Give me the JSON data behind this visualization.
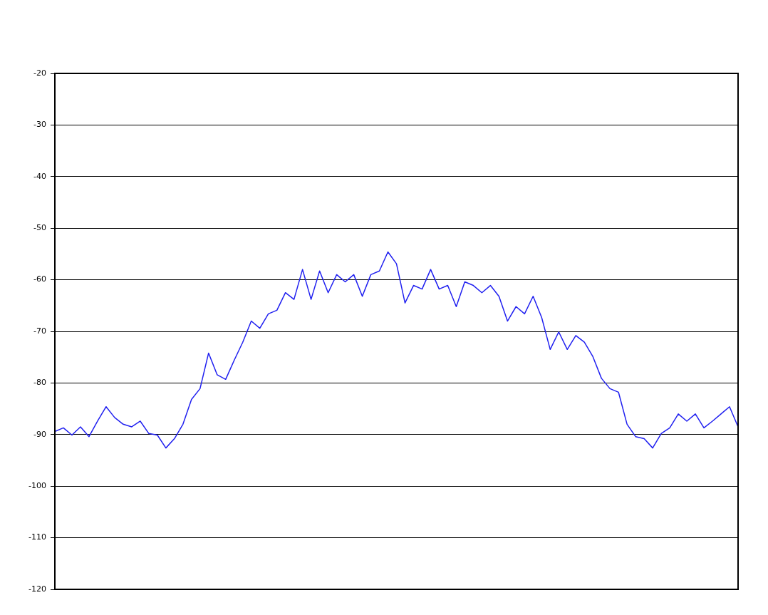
{
  "chart_data": {
    "type": "line",
    "grid": "y",
    "tick_labels": "y",
    "marker": "none",
    "line_style": "solid",
    "categories": [
      null,
      null,
      null,
      null,
      null,
      null,
      null,
      null,
      null,
      null,
      null,
      null,
      null,
      null,
      null,
      null,
      null,
      null,
      null,
      null,
      null,
      null,
      null,
      null,
      null,
      null,
      null,
      null,
      null,
      null,
      null,
      null,
      null,
      null,
      null,
      null,
      null,
      null,
      null,
      null,
      null,
      null,
      null,
      null,
      null,
      null,
      null,
      null,
      null,
      null,
      null,
      null,
      null,
      null,
      null,
      null,
      null,
      null,
      null,
      null,
      null,
      null,
      null,
      null,
      null,
      null,
      null,
      null,
      null,
      null,
      null,
      null,
      null,
      null,
      null,
      null,
      null,
      null,
      null,
      null,
      null
    ],
    "ylim": [
      -120,
      -20
    ],
    "yticks": [
      -120,
      -110,
      -100,
      -90,
      -80,
      -70,
      -60,
      -50,
      -40,
      -30,
      -20
    ],
    "series": [
      {
        "color": "#2020f0",
        "values": [
          -89.4,
          -88.7,
          -90.1,
          -88.5,
          -90.4,
          -87.4,
          -84.6,
          -86.7,
          -88.0,
          -88.5,
          -87.4,
          -89.8,
          -90.1,
          -92.6,
          -90.8,
          -88.0,
          -83.2,
          -81.1,
          -74.2,
          -78.4,
          -79.3,
          -75.6,
          -72.1,
          -68.0,
          -69.4,
          -66.6,
          -65.9,
          -62.5,
          -63.8,
          -58.0,
          -63.8,
          -58.3,
          -62.5,
          -59.0,
          -60.4,
          -59.0,
          -63.2,
          -59.0,
          -58.3,
          -54.6,
          -56.9,
          -64.5,
          -61.1,
          -61.8,
          -58.0,
          -61.8,
          -61.1,
          -65.2,
          -60.4,
          -61.1,
          -62.5,
          -61.1,
          -63.2,
          -68.0,
          -65.2,
          -66.6,
          -63.2,
          -67.3,
          -73.5,
          -70.1,
          -73.5,
          -70.8,
          -72.1,
          -74.9,
          -79.1,
          -81.1,
          -81.8,
          -88.0,
          -90.4,
          -90.8,
          -92.6,
          -89.8,
          -88.7,
          -86.0,
          -87.4,
          -86.0,
          -88.7,
          -87.4,
          -86.0,
          -84.6,
          -88.5
        ]
      }
    ]
  }
}
